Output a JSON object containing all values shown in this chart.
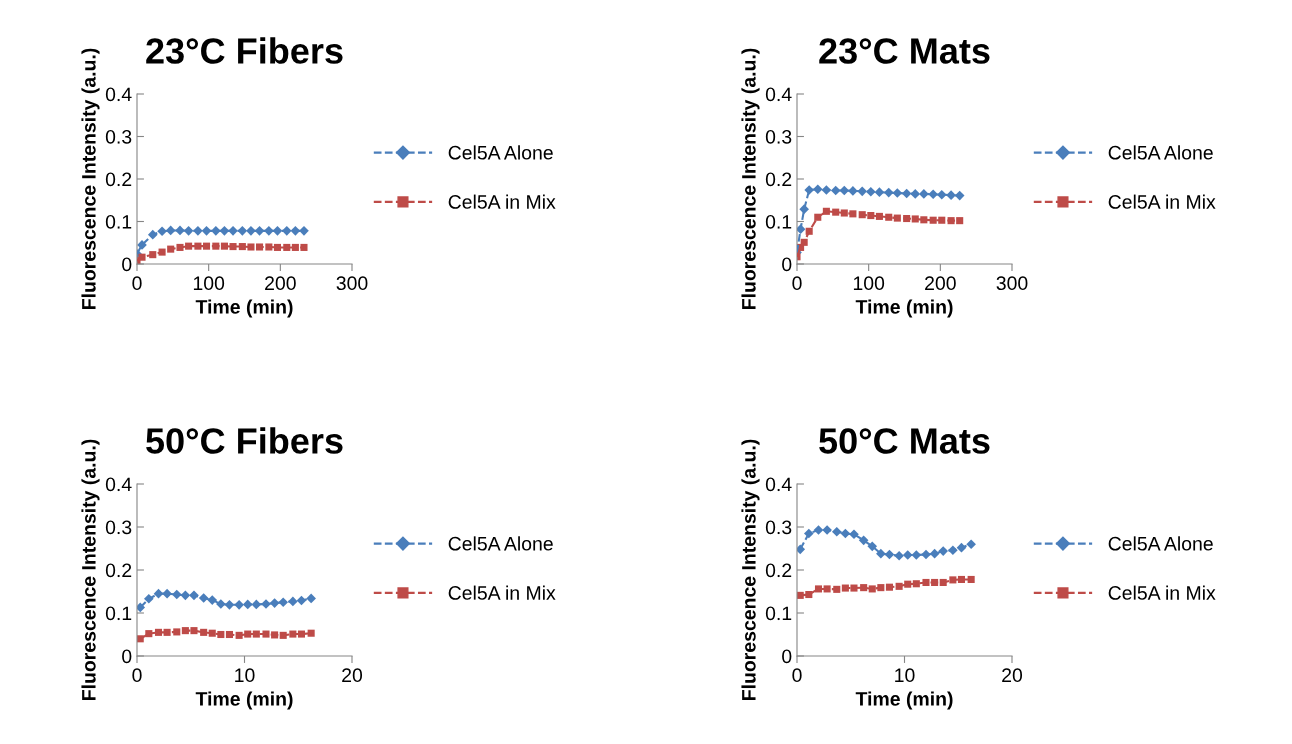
{
  "chart_data": [
    {
      "type": "line",
      "title": "23°C Fibers",
      "xlabel": "Time (min)",
      "ylabel": "Fluorescence Intensity (a.u.)",
      "xlim": [
        0,
        300
      ],
      "xticks": [
        0,
        100,
        200,
        300
      ],
      "ylim": [
        0,
        0.4
      ],
      "yticks": [
        0,
        0.1,
        0.2,
        0.3,
        0.4
      ],
      "grid": false,
      "legend": "right",
      "line_style": "dashed",
      "x": [
        0,
        7,
        22,
        35,
        47,
        60,
        72,
        85,
        97,
        110,
        122,
        134,
        147,
        159,
        171,
        184,
        196,
        209,
        221,
        233
      ],
      "series": [
        {
          "name": "Cel5A Alone",
          "color": "#4a7ebb",
          "marker": "diamond",
          "values": [
            0.024,
            0.045,
            0.069,
            0.077,
            0.079,
            0.079,
            0.078,
            0.078,
            0.078,
            0.078,
            0.078,
            0.078,
            0.078,
            0.078,
            0.078,
            0.078,
            0.078,
            0.078,
            0.078,
            0.078
          ]
        },
        {
          "name": "Cel5A in Mix",
          "color": "#be4b48",
          "marker": "square",
          "values": [
            0.008,
            0.016,
            0.022,
            0.028,
            0.035,
            0.039,
            0.042,
            0.042,
            0.042,
            0.042,
            0.042,
            0.041,
            0.041,
            0.04,
            0.04,
            0.04,
            0.039,
            0.039,
            0.039,
            0.039
          ]
        }
      ]
    },
    {
      "type": "line",
      "title": "23°C Mats",
      "xlabel": "Time (min)",
      "ylabel": "Fluorescence Intensity (a.u.)",
      "xlim": [
        0,
        300
      ],
      "xticks": [
        0,
        100,
        200,
        300
      ],
      "ylim": [
        0,
        0.4
      ],
      "yticks": [
        0,
        0.1,
        0.2,
        0.3,
        0.4
      ],
      "grid": false,
      "legend": "right",
      "line_style": "dashed",
      "x": [
        0,
        5,
        10,
        17,
        29,
        41,
        54,
        66,
        78,
        91,
        103,
        115,
        128,
        140,
        153,
        165,
        177,
        190,
        202,
        215,
        227
      ],
      "series": [
        {
          "name": "Cel5A Alone",
          "color": "#4a7ebb",
          "marker": "diamond",
          "values": [
            0.027,
            0.082,
            0.129,
            0.174,
            0.176,
            0.174,
            0.173,
            0.173,
            0.172,
            0.171,
            0.17,
            0.169,
            0.168,
            0.167,
            0.166,
            0.165,
            0.165,
            0.164,
            0.163,
            0.162,
            0.161
          ]
        },
        {
          "name": "Cel5A in Mix",
          "color": "#be4b48",
          "marker": "square",
          "values": [
            0.017,
            0.039,
            0.051,
            0.077,
            0.11,
            0.124,
            0.122,
            0.12,
            0.118,
            0.116,
            0.114,
            0.112,
            0.11,
            0.108,
            0.107,
            0.106,
            0.104,
            0.103,
            0.103,
            0.102,
            0.102
          ]
        }
      ]
    },
    {
      "type": "line",
      "title": "50°C Fibers",
      "xlabel": "Time (min)",
      "ylabel": "Fluorescence Intensity (a.u.)",
      "xlim": [
        0,
        20
      ],
      "xticks": [
        0,
        10,
        20
      ],
      "ylim": [
        0,
        0.4
      ],
      "yticks": [
        0,
        0.1,
        0.2,
        0.3,
        0.4
      ],
      "grid": false,
      "legend": "right",
      "line_style": "dashed",
      "x": [
        0.3,
        1.1,
        2,
        2.8,
        3.7,
        4.5,
        5.3,
        6.2,
        7,
        7.8,
        8.6,
        9.5,
        10.3,
        11.1,
        12,
        12.8,
        13.6,
        14.5,
        15.3,
        16.2
      ],
      "series": [
        {
          "name": "Cel5A Alone",
          "color": "#4a7ebb",
          "marker": "diamond",
          "values": [
            0.113,
            0.133,
            0.145,
            0.145,
            0.143,
            0.141,
            0.141,
            0.135,
            0.13,
            0.121,
            0.119,
            0.119,
            0.12,
            0.12,
            0.121,
            0.123,
            0.125,
            0.127,
            0.129,
            0.134
          ]
        },
        {
          "name": "Cel5A in Mix",
          "color": "#be4b48",
          "marker": "square",
          "values": [
            0.04,
            0.052,
            0.055,
            0.055,
            0.056,
            0.059,
            0.059,
            0.055,
            0.053,
            0.05,
            0.05,
            0.048,
            0.051,
            0.051,
            0.051,
            0.049,
            0.048,
            0.051,
            0.051,
            0.053
          ]
        }
      ]
    },
    {
      "type": "line",
      "title": "50°C Mats",
      "xlabel": "Time (min)",
      "ylabel": "Fluorescence Intensity (a.u.)",
      "xlim": [
        0,
        20
      ],
      "xticks": [
        0,
        10,
        20
      ],
      "ylim": [
        0,
        0.4
      ],
      "yticks": [
        0,
        0.1,
        0.2,
        0.3,
        0.4
      ],
      "grid": false,
      "legend": "right",
      "line_style": "dashed",
      "x": [
        0.3,
        1.1,
        2,
        2.8,
        3.7,
        4.5,
        5.3,
        6.2,
        7,
        7.8,
        8.6,
        9.5,
        10.3,
        11.1,
        12,
        12.8,
        13.6,
        14.5,
        15.3,
        16.2
      ],
      "series": [
        {
          "name": "Cel5A Alone",
          "color": "#4a7ebb",
          "marker": "diamond",
          "values": [
            0.248,
            0.285,
            0.293,
            0.293,
            0.289,
            0.285,
            0.283,
            0.269,
            0.255,
            0.238,
            0.236,
            0.233,
            0.235,
            0.235,
            0.236,
            0.238,
            0.244,
            0.246,
            0.252,
            0.26
          ]
        },
        {
          "name": "Cel5A in Mix",
          "color": "#be4b48",
          "marker": "square",
          "values": [
            0.141,
            0.143,
            0.156,
            0.156,
            0.155,
            0.158,
            0.158,
            0.159,
            0.156,
            0.159,
            0.16,
            0.162,
            0.167,
            0.168,
            0.171,
            0.171,
            0.171,
            0.177,
            0.178,
            0.178
          ]
        }
      ]
    }
  ]
}
